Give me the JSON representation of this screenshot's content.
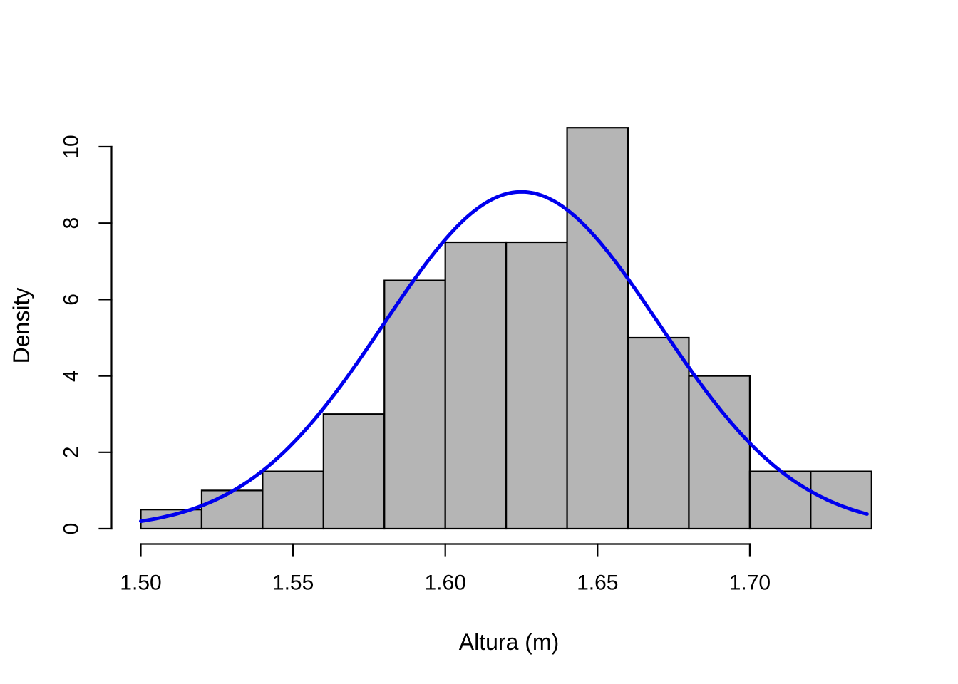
{
  "chart_data": {
    "type": "bar",
    "subtype": "histogram-with-density-curve",
    "title": "",
    "xlabel": "Altura (m)",
    "ylabel": "Density",
    "bin_start": 1.5,
    "bin_width": 0.02,
    "bin_edges": [
      1.5,
      1.52,
      1.54,
      1.56,
      1.58,
      1.6,
      1.62,
      1.64,
      1.66,
      1.68,
      1.7,
      1.72,
      1.74
    ],
    "densities": [
      0.5,
      1.0,
      1.5,
      3.0,
      6.5,
      7.5,
      7.5,
      10.5,
      5.0,
      4.0,
      1.5,
      1.5
    ],
    "x_ticks": [
      {
        "value": 1.5,
        "label": "1.50"
      },
      {
        "value": 1.55,
        "label": "1.55"
      },
      {
        "value": 1.6,
        "label": "1.60"
      },
      {
        "value": 1.65,
        "label": "1.65"
      },
      {
        "value": 1.7,
        "label": "1.70"
      }
    ],
    "y_ticks": [
      {
        "value": 0,
        "label": "0"
      },
      {
        "value": 2,
        "label": "2"
      },
      {
        "value": 4,
        "label": "4"
      },
      {
        "value": 6,
        "label": "6"
      },
      {
        "value": 8,
        "label": "8"
      },
      {
        "value": 10,
        "label": "10"
      }
    ],
    "xlim": [
      1.49,
      1.75
    ],
    "ylim": [
      0,
      10.5
    ],
    "grid": false,
    "legend": "none",
    "curve": {
      "kind": "normal-density",
      "mean": 1.625,
      "sd": 0.0453,
      "peak_density": 8.82,
      "x_start": 1.5,
      "x_end": 1.7385,
      "color": "#0000ee",
      "stroke_width": 5
    },
    "colors": {
      "bar_fill": "#b5b5b5",
      "bar_stroke": "#000000",
      "axis": "#000000",
      "background": "#ffffff"
    }
  }
}
